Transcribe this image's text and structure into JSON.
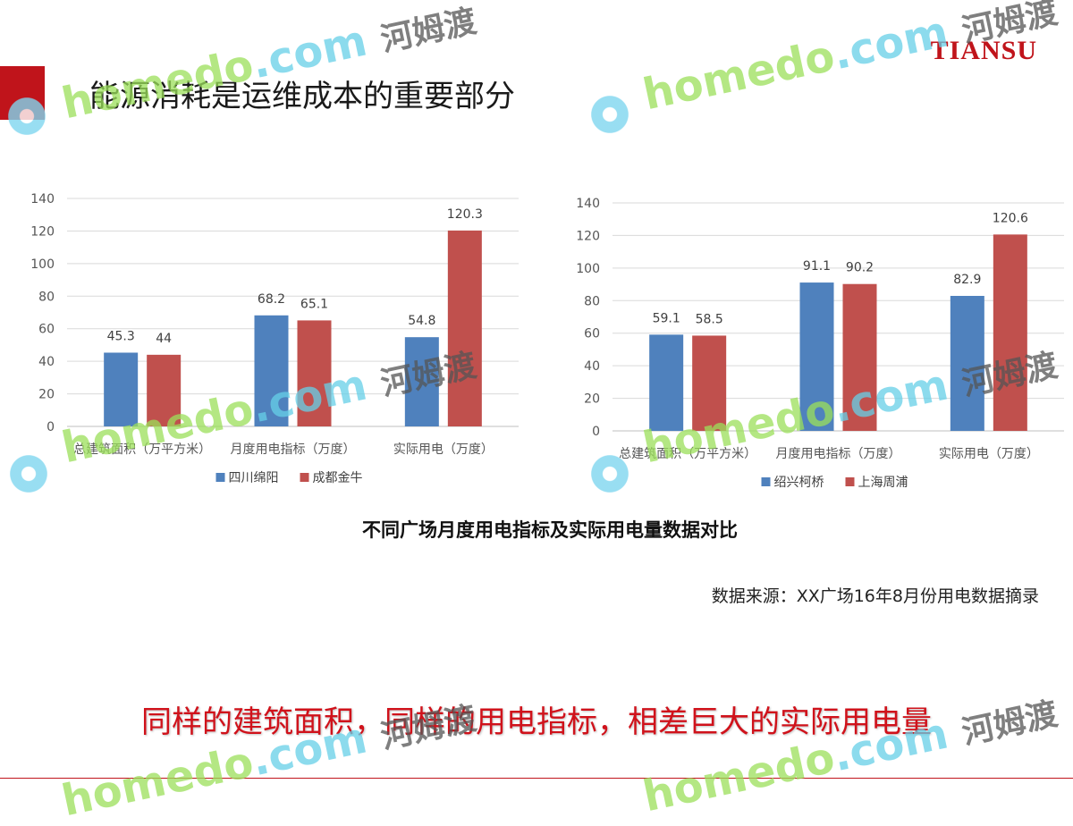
{
  "slide": {
    "title": "能源消耗是运维成本的重要部分",
    "logo": "TIANSU",
    "caption": "不同广场月度用电指标及实际用电量数据对比",
    "source": "数据来源：XX广场16年8月份用电数据摘录",
    "conclusion": "同样的建筑面积，同样的用电指标，相差巨大的实际用电量"
  },
  "watermark": {
    "site": "homedo",
    "dot_com": ".com",
    "cn": "河姆渡"
  },
  "colors": {
    "blue": "#4f81bd",
    "red": "#c0504d",
    "accent": "#c0141b"
  },
  "chart_data": [
    {
      "type": "bar",
      "categories": [
        "总建筑面积（万平方米）",
        "月度用电指标（万度）",
        "实际用电（万度）"
      ],
      "series": [
        {
          "name": "四川绵阳",
          "values": [
            45.3,
            68.2,
            54.8
          ]
        },
        {
          "name": "成都金牛",
          "values": [
            44,
            65.1,
            120.3
          ]
        }
      ],
      "ylim": [
        0,
        140
      ],
      "yticks": [
        0,
        20,
        40,
        60,
        80,
        100,
        120,
        140
      ],
      "grid": true,
      "legend": "bottom"
    },
    {
      "type": "bar",
      "categories": [
        "总建筑面积（万平方米）",
        "月度用电指标（万度）",
        "实际用电（万度）"
      ],
      "series": [
        {
          "name": "绍兴柯桥",
          "values": [
            59.1,
            91.1,
            82.9
          ]
        },
        {
          "name": "上海周浦",
          "values": [
            58.5,
            90.2,
            120.6
          ]
        }
      ],
      "ylim": [
        0,
        140
      ],
      "yticks": [
        0,
        20,
        40,
        60,
        80,
        100,
        120,
        140
      ],
      "grid": true,
      "legend": "bottom"
    }
  ]
}
